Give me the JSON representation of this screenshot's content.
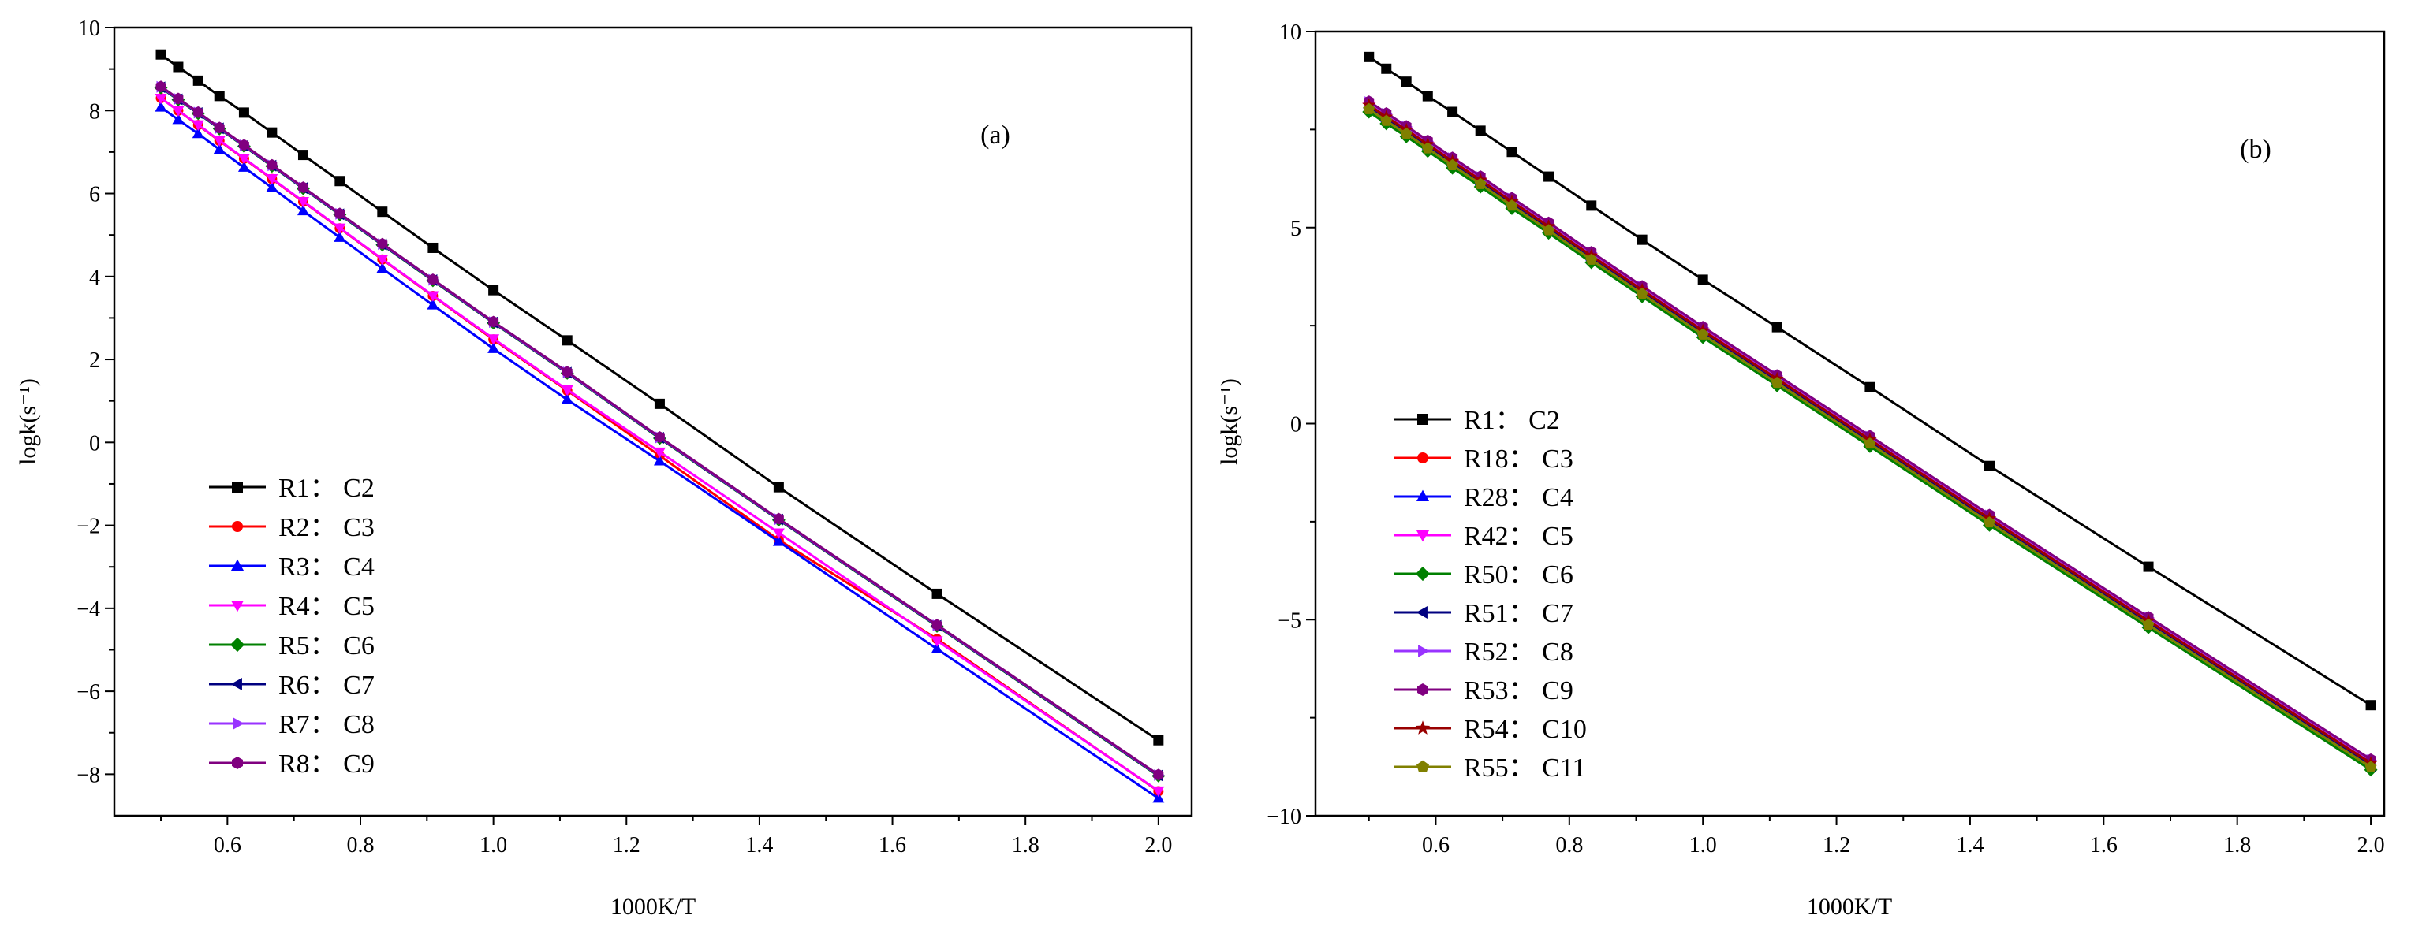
{
  "figure": {
    "background": "#ffffff",
    "axis_color": "#000000"
  },
  "chart_data": [
    {
      "type": "line",
      "panel_label": "(a)",
      "title": "",
      "xlabel": "1000K/T",
      "ylabel": "logk(s⁻¹)",
      "xlim": [
        0.43,
        2.05
      ],
      "ylim": [
        -9.0,
        10.0
      ],
      "xticks": [
        0.6,
        0.8,
        1.0,
        1.2,
        1.4,
        1.6,
        1.8,
        2.0
      ],
      "xtick_labels": [
        "0.6",
        "0.8",
        "1.0",
        "1.2",
        "1.4",
        "1.6",
        "1.8",
        "2.0"
      ],
      "yticks": [
        -8,
        -6,
        -4,
        -2,
        0,
        2,
        4,
        6,
        8,
        10
      ],
      "ytick_labels": [
        "−8",
        "−6",
        "−4",
        "−2",
        "0",
        "2",
        "4",
        "6",
        "8",
        "10"
      ],
      "grid": false,
      "legend_position": "lower-left",
      "x": [
        0.5,
        0.526,
        0.556,
        0.588,
        0.625,
        0.667,
        0.714,
        0.769,
        0.833,
        0.909,
        1.0,
        1.111,
        1.25,
        1.429,
        1.667,
        2.0
      ],
      "series": [
        {
          "name": "R1： C2",
          "color": "#000000",
          "marker": "square",
          "values": [
            9.35,
            9.05,
            8.72,
            8.35,
            7.95,
            7.47,
            6.93,
            6.3,
            5.56,
            4.69,
            3.67,
            2.46,
            0.93,
            -1.08,
            -3.65,
            -7.18
          ]
        },
        {
          "name": "R2： C3",
          "color": "#ff0000",
          "marker": "circle",
          "values": [
            8.3,
            8.0,
            7.65,
            7.27,
            6.84,
            6.35,
            5.8,
            5.16,
            4.41,
            3.53,
            2.48,
            1.25,
            -0.32,
            -2.35,
            -4.74,
            -8.41
          ]
        },
        {
          "name": "R3： C4",
          "color": "#0000ff",
          "marker": "triangle-up",
          "values": [
            8.08,
            7.78,
            7.44,
            7.06,
            6.63,
            6.14,
            5.58,
            4.94,
            4.19,
            3.31,
            2.26,
            1.03,
            -0.45,
            -2.39,
            -4.98,
            -8.58
          ]
        },
        {
          "name": "R4： C5",
          "color": "#ff00ff",
          "marker": "triangle-down",
          "values": [
            8.3,
            8.0,
            7.66,
            7.28,
            6.85,
            6.36,
            5.81,
            5.17,
            4.42,
            3.54,
            2.5,
            1.27,
            -0.23,
            -2.18,
            -4.78,
            -8.4
          ]
        },
        {
          "name": "R5： C6",
          "color": "#008000",
          "marker": "diamond",
          "values": [
            8.55,
            8.26,
            7.93,
            7.56,
            7.14,
            6.66,
            6.12,
            5.49,
            4.76,
            3.9,
            2.88,
            1.67,
            0.1,
            -1.87,
            -4.43,
            -8.04
          ]
        },
        {
          "name": "R6： C7",
          "color": "#000080",
          "marker": "triangle-left",
          "values": [
            8.56,
            8.27,
            7.94,
            7.57,
            7.15,
            6.67,
            6.13,
            5.5,
            4.77,
            3.91,
            2.89,
            1.68,
            0.11,
            -1.86,
            -4.42,
            -8.03
          ]
        },
        {
          "name": "R7： C8",
          "color": "#9933ff",
          "marker": "triangle-right",
          "values": [
            8.57,
            8.28,
            7.95,
            7.58,
            7.16,
            6.68,
            6.14,
            5.51,
            4.78,
            3.92,
            2.9,
            1.69,
            0.12,
            -1.85,
            -4.41,
            -8.02
          ]
        },
        {
          "name": "R8： C9",
          "color": "#800080",
          "marker": "hexagon",
          "values": [
            8.58,
            8.29,
            7.96,
            7.59,
            7.17,
            6.69,
            6.15,
            5.52,
            4.79,
            3.93,
            2.91,
            1.7,
            0.13,
            -1.84,
            -4.4,
            -8.01
          ]
        }
      ]
    },
    {
      "type": "line",
      "panel_label": "(b)",
      "title": "",
      "xlabel": "1000K/T",
      "ylabel": "logk(s⁻¹)",
      "xlim": [
        0.42,
        2.02
      ],
      "ylim": [
        -10.0,
        10.0
      ],
      "xticks": [
        0.6,
        0.8,
        1.0,
        1.2,
        1.4,
        1.6,
        1.8,
        2.0
      ],
      "xtick_labels": [
        "0.6",
        "0.8",
        "1.0",
        "1.2",
        "1.4",
        "1.6",
        "1.8",
        "2.0"
      ],
      "yticks": [
        -10,
        -5,
        0,
        5,
        10
      ],
      "ytick_labels": [
        "−10",
        "−5",
        "0",
        "5",
        "10"
      ],
      "grid": false,
      "legend_position": "lower-left",
      "x": [
        0.5,
        0.526,
        0.556,
        0.588,
        0.625,
        0.667,
        0.714,
        0.769,
        0.833,
        0.909,
        1.0,
        1.111,
        1.25,
        1.429,
        1.667,
        2.0
      ],
      "series": [
        {
          "name": "R1： C2",
          "color": "#000000",
          "marker": "square",
          "values": [
            9.35,
            9.05,
            8.72,
            8.35,
            7.95,
            7.47,
            6.93,
            6.3,
            5.56,
            4.69,
            3.67,
            2.46,
            0.93,
            -1.08,
            -3.65,
            -7.18
          ]
        },
        {
          "name": "R18： C3",
          "color": "#ff0000",
          "marker": "circle",
          "values": [
            8.18,
            7.88,
            7.55,
            7.18,
            6.75,
            6.27,
            5.72,
            5.09,
            4.34,
            3.47,
            2.43,
            1.2,
            -0.35,
            -2.36,
            -4.97,
            -8.6
          ]
        },
        {
          "name": "R28： C4",
          "color": "#0000ff",
          "marker": "triangle-up",
          "values": [
            8.1,
            7.8,
            7.47,
            7.1,
            6.67,
            6.19,
            5.64,
            5.01,
            4.26,
            3.39,
            2.35,
            1.12,
            -0.43,
            -2.44,
            -5.05,
            -8.68
          ]
        },
        {
          "name": "R42： C5",
          "color": "#ff00ff",
          "marker": "triangle-down",
          "values": [
            8.08,
            7.78,
            7.45,
            7.08,
            6.65,
            6.17,
            5.62,
            4.99,
            4.24,
            3.37,
            2.33,
            1.1,
            -0.45,
            -2.46,
            -5.07,
            -8.7
          ]
        },
        {
          "name": "R50： C6",
          "color": "#008000",
          "marker": "diamond",
          "values": [
            7.95,
            7.65,
            7.32,
            6.95,
            6.52,
            6.04,
            5.49,
            4.86,
            4.11,
            3.24,
            2.2,
            0.97,
            -0.58,
            -2.59,
            -5.2,
            -8.83
          ]
        },
        {
          "name": "R51： C7",
          "color": "#000080",
          "marker": "triangle-left",
          "values": [
            8.05,
            7.75,
            7.42,
            7.05,
            6.62,
            6.14,
            5.59,
            4.96,
            4.21,
            3.34,
            2.3,
            1.07,
            -0.48,
            -2.49,
            -5.1,
            -8.73
          ]
        },
        {
          "name": "R52： C8",
          "color": "#9933ff",
          "marker": "triangle-right",
          "values": [
            8.2,
            7.9,
            7.57,
            7.2,
            6.77,
            6.29,
            5.74,
            5.11,
            4.36,
            3.49,
            2.45,
            1.22,
            -0.33,
            -2.34,
            -4.95,
            -8.58
          ]
        },
        {
          "name": "R53： C9",
          "color": "#800080",
          "marker": "hexagon",
          "values": [
            8.22,
            7.92,
            7.59,
            7.22,
            6.79,
            6.31,
            5.76,
            5.13,
            4.38,
            3.51,
            2.47,
            1.24,
            -0.31,
            -2.32,
            -4.93,
            -8.56
          ]
        },
        {
          "name": "R54： C10",
          "color": "#990000",
          "marker": "star",
          "values": [
            8.12,
            7.82,
            7.49,
            7.12,
            6.69,
            6.21,
            5.66,
            5.03,
            4.28,
            3.41,
            2.37,
            1.14,
            -0.41,
            -2.42,
            -5.03,
            -8.66
          ]
        },
        {
          "name": "R55： C11",
          "color": "#808000",
          "marker": "pentagon",
          "values": [
            8.02,
            7.72,
            7.39,
            7.02,
            6.59,
            6.11,
            5.56,
            4.93,
            4.18,
            3.31,
            2.27,
            1.04,
            -0.51,
            -2.52,
            -5.13,
            -8.76
          ]
        }
      ]
    }
  ]
}
